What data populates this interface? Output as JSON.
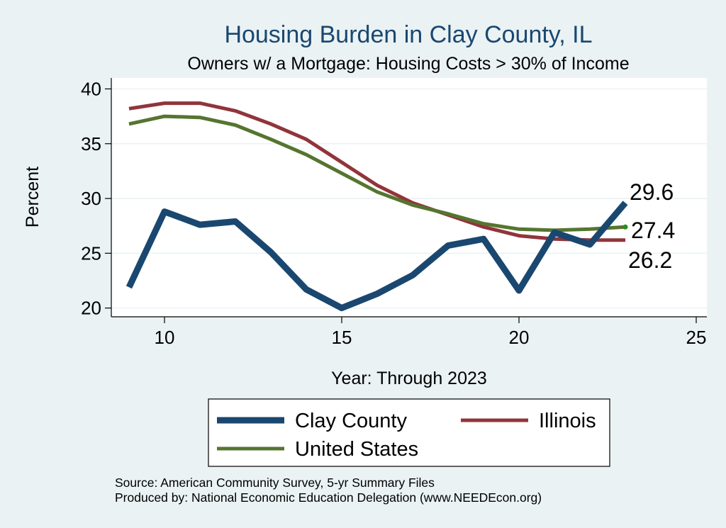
{
  "chart_data": {
    "type": "line",
    "title": "Housing Burden in Clay County, IL",
    "subtitle": "Owners w/ a Mortgage: Housing Costs > 30% of Income",
    "xlabel": "Year: Through 2023",
    "ylabel": "Percent",
    "xlim": [
      8.5,
      25.3
    ],
    "ylim": [
      19.2,
      41
    ],
    "xticks": [
      10,
      15,
      20,
      25
    ],
    "yticks": [
      20,
      25,
      30,
      35,
      40
    ],
    "grid": true,
    "x": [
      9,
      10,
      11,
      12,
      13,
      14,
      15,
      16,
      17,
      18,
      19,
      20,
      21,
      22,
      23
    ],
    "series": [
      {
        "name": "Clay County",
        "color": "#1a476f",
        "values": [
          21.9,
          28.8,
          27.6,
          27.9,
          25.1,
          21.7,
          20.0,
          21.3,
          23.0,
          25.7,
          26.3,
          21.6,
          26.9,
          25.8,
          29.6
        ],
        "end_label": "29.6"
      },
      {
        "name": "Illinois",
        "color": "#90353b",
        "values": [
          38.2,
          38.7,
          38.7,
          38.0,
          36.8,
          35.4,
          33.3,
          31.2,
          29.6,
          28.5,
          27.4,
          26.6,
          26.3,
          26.2,
          26.2
        ],
        "end_label": "26.2"
      },
      {
        "name": "United States",
        "color": "#55752f",
        "values": [
          36.8,
          37.5,
          37.4,
          36.7,
          35.4,
          34.0,
          32.3,
          30.6,
          29.4,
          28.6,
          27.7,
          27.2,
          27.1,
          27.2,
          27.4
        ],
        "end_label": "27.4"
      }
    ],
    "legend": {
      "position": "bottom",
      "entries": [
        "Clay County",
        "Illinois",
        "United States"
      ]
    },
    "notes": [
      "Source: American Community Survey, 5-yr Summary Files",
      "Produced by: National Economic Education Delegation (www.NEEDEcon.org)"
    ]
  }
}
